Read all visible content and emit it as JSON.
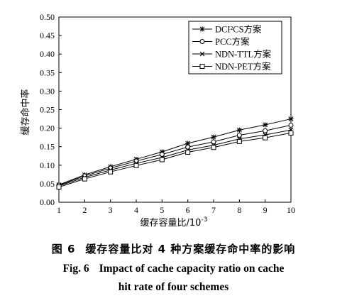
{
  "chart_data": {
    "type": "line",
    "x": [
      1,
      2,
      3,
      4,
      5,
      6,
      7,
      8,
      9,
      10
    ],
    "xlabel": "缓存容量比/10",
    "xlabel_sup": "-3",
    "ylabel": "缓存命中率",
    "xlim": [
      1,
      10
    ],
    "ylim": [
      0,
      0.5
    ],
    "yticks": [
      "0.00",
      "0.05",
      "0.10",
      "0.15",
      "0.20",
      "0.25",
      "0.30",
      "0.35",
      "0.40",
      "0.45",
      "0.50"
    ],
    "xticks": [
      "1",
      "2",
      "3",
      "4",
      "5",
      "6",
      "7",
      "8",
      "9",
      "10"
    ],
    "grid": false,
    "legend_position": "top-right",
    "series": [
      {
        "name": "DCI²CS方案",
        "marker": "asterisk",
        "values": [
          0.047,
          0.074,
          0.096,
          0.116,
          0.136,
          0.159,
          0.176,
          0.195,
          0.209,
          0.225
        ]
      },
      {
        "name": "PCC方案",
        "marker": "circle",
        "values": [
          0.046,
          0.071,
          0.092,
          0.111,
          0.129,
          0.149,
          0.163,
          0.181,
          0.193,
          0.208
        ]
      },
      {
        "name": "NDN-TTL方案",
        "marker": "x",
        "values": [
          0.044,
          0.067,
          0.087,
          0.105,
          0.121,
          0.141,
          0.154,
          0.171,
          0.182,
          0.195
        ]
      },
      {
        "name": "NDN-PET方案",
        "marker": "square",
        "values": [
          0.041,
          0.063,
          0.082,
          0.099,
          0.115,
          0.135,
          0.148,
          0.164,
          0.174,
          0.187
        ]
      }
    ]
  },
  "caption": {
    "cn_num": "图 6",
    "cn_text": "缓存容量比对 4 种方案缓存命中率的影响",
    "en_num": "Fig. 6",
    "en_line1": "Impact of cache capacity ratio on cache",
    "en_line2": "hit rate of four schemes"
  }
}
